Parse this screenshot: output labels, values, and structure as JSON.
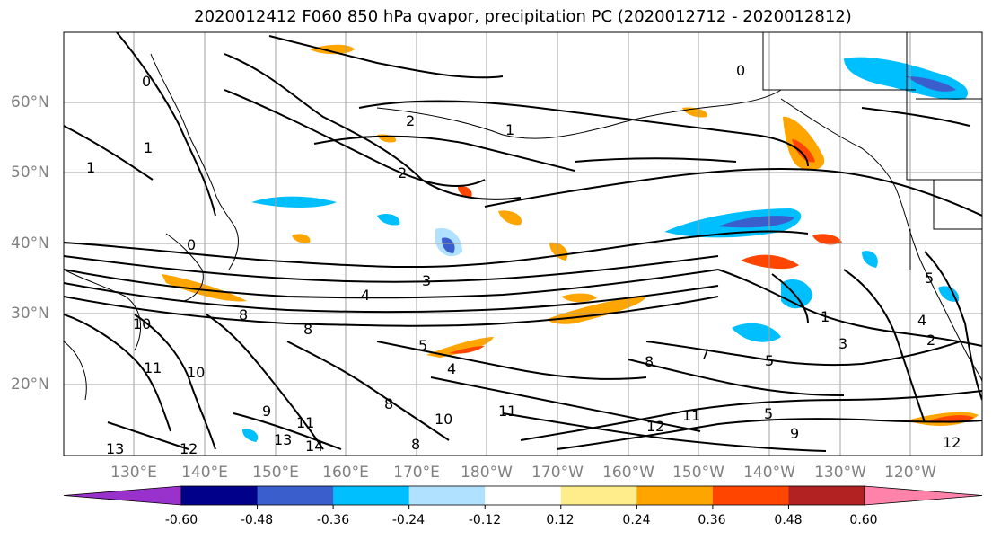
{
  "title": "2020012412 F060 850 hPa qvapor, precipitation PC (2020012712 - 2020012812)",
  "latitude_labels": [
    "60°N",
    "50°N",
    "40°N",
    "30°N",
    "20°N"
  ],
  "longitude_labels": [
    "130°E",
    "140°E",
    "150°E",
    "160°E",
    "170°E",
    "180°W",
    "170°W",
    "160°W",
    "150°W",
    "140°W",
    "130°W",
    "120°W"
  ],
  "contour_labels": [
    "0",
    "0",
    "0",
    "1",
    "1",
    "1",
    "1",
    "2",
    "2",
    "2",
    "3",
    "3",
    "4",
    "4",
    "4",
    "5",
    "5",
    "5",
    "5",
    "7",
    "8",
    "8",
    "8",
    "8",
    "8",
    "9",
    "9",
    "10",
    "10",
    "10",
    "11",
    "11",
    "11",
    "11",
    "12",
    "12",
    "12",
    "13",
    "13",
    "14"
  ],
  "colorbar": {
    "tick_labels": [
      "-0.60",
      "-0.48",
      "-0.36",
      "-0.24",
      "-0.12",
      "0.12",
      "0.24",
      "0.36",
      "0.48",
      "0.60"
    ],
    "ticks": [
      -0.6,
      -0.48,
      -0.36,
      -0.24,
      -0.12,
      0.12,
      0.24,
      0.36,
      0.48,
      0.6
    ],
    "colors": [
      "#9932cc",
      "#00008b",
      "#3a5fcd",
      "#00bfff",
      "#b0e2ff",
      "#ffffff",
      "#ffec8b",
      "#ffa500",
      "#ff4500",
      "#b22222",
      "#ff82ab"
    ]
  },
  "colors": {
    "contour": "#000000",
    "grid": "#a0a0a0",
    "coast": "#000000",
    "axis_label": "#808080"
  }
}
